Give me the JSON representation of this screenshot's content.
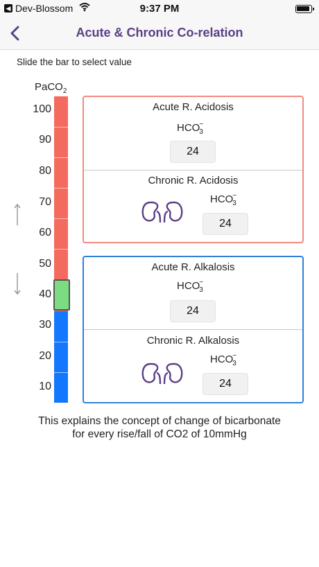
{
  "status_bar": {
    "carrier": "Dev-Blossom",
    "time": "9:37 PM"
  },
  "nav": {
    "title": "Acute & Chronic Co-relation"
  },
  "instruction": "Slide the bar to select value",
  "scale": {
    "label_base": "PaCO",
    "label_sub": "2",
    "ticks": [
      "100",
      "90",
      "80",
      "70",
      "60",
      "50",
      "40",
      "30",
      "20",
      "10"
    ],
    "selected_value": 40,
    "colors": {
      "high": "#f46a5e",
      "selected": "#7bdc82",
      "low": "#1478ff"
    }
  },
  "acidosis": {
    "acute_title": "Acute R. Acidosis",
    "chronic_title": "Chronic R. Acidosis",
    "hco_base": "HCO",
    "hco_sup": "−",
    "hco_sub": "3",
    "acute_value": "24",
    "chronic_value": "24",
    "border_color": "#f28a80"
  },
  "alkalosis": {
    "acute_title": "Acute R. Alkalosis",
    "chronic_title": "Chronic R. Alkalosis",
    "hco_base": "HCO",
    "hco_sup": "−",
    "hco_sub": "3",
    "acute_value": "24",
    "chronic_value": "24",
    "border_color": "#2f80d8"
  },
  "footer": {
    "line1": "This explains the concept of change of bicarbonate",
    "line2": "for every rise/fall of CO2 of 10mmHg"
  },
  "icons": {
    "nav_back": "chevron-left-icon",
    "kidney": "kidneys-icon",
    "up": "arrow-up-icon",
    "down": "arrow-down-icon"
  },
  "theme": {
    "title_color": "#5a3f86",
    "kidney_color": "#5a3f86"
  }
}
